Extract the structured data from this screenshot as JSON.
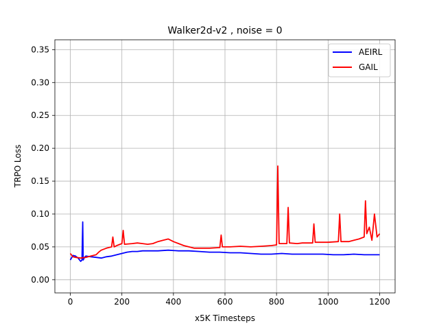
{
  "chart_data": {
    "type": "line",
    "title": "Walker2d-v2 , noise = 0",
    "xlabel": "x5K Timesteps",
    "ylabel": "TRPO Loss",
    "xlim": [
      -60,
      1260
    ],
    "ylim": [
      -0.02,
      0.365
    ],
    "xticks": [
      0,
      200,
      400,
      600,
      800,
      1000,
      1200
    ],
    "xtick_labels": [
      "0",
      "200",
      "400",
      "600",
      "800",
      "1000",
      "1200"
    ],
    "yticks": [
      0.0,
      0.05,
      0.1,
      0.15,
      0.2,
      0.25,
      0.3,
      0.35
    ],
    "ytick_labels": [
      "0.00",
      "0.05",
      "0.10",
      "0.15",
      "0.20",
      "0.25",
      "0.30",
      "0.35"
    ],
    "grid": true,
    "legend": {
      "position": "top-right",
      "entries": [
        "AEIRL",
        "GAIL"
      ]
    },
    "series": [
      {
        "name": "AEIRL",
        "color": "#0000ff",
        "x": [
          0,
          10,
          20,
          30,
          40,
          45,
          48,
          50,
          55,
          60,
          80,
          100,
          120,
          140,
          160,
          180,
          200,
          220,
          240,
          260,
          280,
          300,
          340,
          380,
          420,
          460,
          500,
          540,
          580,
          620,
          660,
          700,
          740,
          780,
          820,
          860,
          900,
          940,
          980,
          1020,
          1060,
          1100,
          1140,
          1180,
          1200
        ],
        "y": [
          0.03,
          0.037,
          0.036,
          0.033,
          0.028,
          0.03,
          0.088,
          0.03,
          0.034,
          0.036,
          0.035,
          0.034,
          0.033,
          0.035,
          0.036,
          0.038,
          0.04,
          0.042,
          0.043,
          0.043,
          0.044,
          0.044,
          0.044,
          0.045,
          0.044,
          0.044,
          0.043,
          0.042,
          0.042,
          0.041,
          0.041,
          0.04,
          0.039,
          0.039,
          0.04,
          0.039,
          0.039,
          0.039,
          0.039,
          0.038,
          0.038,
          0.039,
          0.038,
          0.038,
          0.038
        ]
      },
      {
        "name": "GAIL",
        "color": "#ff0000",
        "x": [
          0,
          10,
          20,
          40,
          60,
          80,
          100,
          110,
          120,
          140,
          160,
          165,
          170,
          180,
          200,
          205,
          210,
          240,
          260,
          280,
          300,
          320,
          340,
          360,
          380,
          400,
          420,
          440,
          460,
          480,
          500,
          540,
          580,
          585,
          590,
          620,
          660,
          700,
          740,
          780,
          800,
          805,
          810,
          840,
          845,
          850,
          880,
          900,
          940,
          945,
          950,
          980,
          1000,
          1040,
          1045,
          1050,
          1080,
          1100,
          1120,
          1140,
          1145,
          1150,
          1160,
          1170,
          1180,
          1190,
          1200
        ],
        "y": [
          0.04,
          0.035,
          0.034,
          0.033,
          0.034,
          0.036,
          0.038,
          0.042,
          0.045,
          0.048,
          0.05,
          0.065,
          0.05,
          0.052,
          0.055,
          0.075,
          0.054,
          0.055,
          0.056,
          0.055,
          0.054,
          0.055,
          0.058,
          0.06,
          0.062,
          0.058,
          0.055,
          0.052,
          0.05,
          0.048,
          0.048,
          0.048,
          0.049,
          0.068,
          0.05,
          0.05,
          0.051,
          0.05,
          0.051,
          0.052,
          0.053,
          0.173,
          0.055,
          0.055,
          0.11,
          0.056,
          0.055,
          0.056,
          0.056,
          0.085,
          0.057,
          0.057,
          0.057,
          0.058,
          0.1,
          0.058,
          0.058,
          0.06,
          0.062,
          0.065,
          0.12,
          0.07,
          0.08,
          0.06,
          0.1,
          0.065,
          0.07
        ]
      }
    ]
  }
}
